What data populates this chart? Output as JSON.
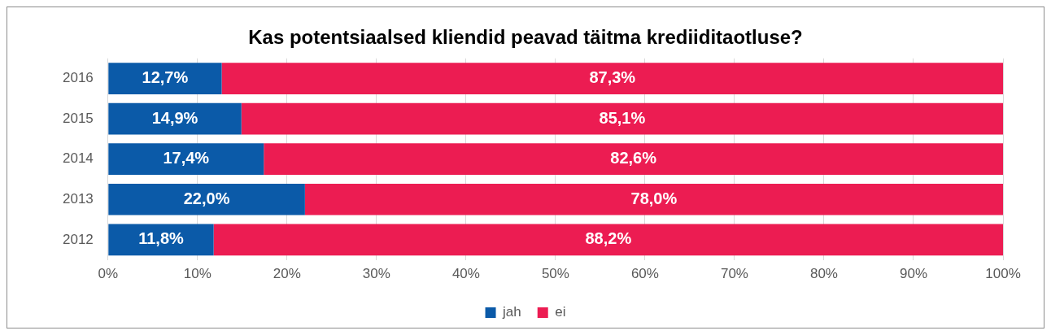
{
  "chart_data": {
    "type": "bar",
    "title": "Kas potentsiaalsed kliendid peavad täitma krediiditaotluse?",
    "orientation": "horizontal",
    "stacked": true,
    "categories": [
      "2016",
      "2015",
      "2014",
      "2013",
      "2012"
    ],
    "series": [
      {
        "name": "jah",
        "color": "#0b5aa8",
        "values": [
          12.7,
          14.9,
          17.4,
          22.0,
          11.8
        ],
        "value_labels": [
          "12,7%",
          "14,9%",
          "17,4%",
          "22,0%",
          "11,8%"
        ]
      },
      {
        "name": "ei",
        "color": "#ec1c52",
        "values": [
          87.3,
          85.1,
          82.6,
          78.0,
          88.2
        ],
        "value_labels": [
          "87,3%",
          "85,1%",
          "82,6%",
          "78,0%",
          "88,2%"
        ]
      }
    ],
    "xlim": [
      0,
      100
    ],
    "xticks": [
      {
        "value": 0,
        "label": "0%"
      },
      {
        "value": 10,
        "label": "10%"
      },
      {
        "value": 20,
        "label": "20%"
      },
      {
        "value": 30,
        "label": "30%"
      },
      {
        "value": 40,
        "label": "40%"
      },
      {
        "value": 50,
        "label": "50%"
      },
      {
        "value": 60,
        "label": "60%"
      },
      {
        "value": 70,
        "label": "70%"
      },
      {
        "value": 80,
        "label": "80%"
      },
      {
        "value": 90,
        "label": "90%"
      },
      {
        "value": 100,
        "label": "100%"
      }
    ],
    "grid": "x",
    "legend": "bottom"
  }
}
